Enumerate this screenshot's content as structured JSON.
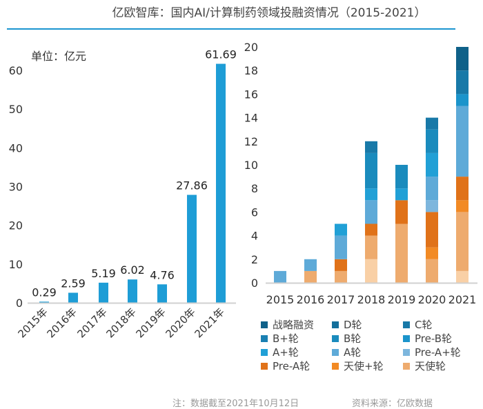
{
  "title": "亿欧智库：国内AI/计算制药领域投融资情况（2015-2021）",
  "footer": {
    "note": "注：数据截至2021年10月12日",
    "source": "资料来源：亿欧数据"
  },
  "chart_data": [
    {
      "type": "bar",
      "unit_label": "单位：亿元",
      "categories": [
        "2015年",
        "2016年",
        "2017年",
        "2018年",
        "2019年",
        "2020年",
        "2021年"
      ],
      "values": [
        0.29,
        2.59,
        5.19,
        6.02,
        4.76,
        27.86,
        61.69
      ],
      "data_labels": [
        "0.29",
        "2.59",
        "5.19",
        "6.02",
        "4.76",
        "27.86",
        "61.69"
      ],
      "ylim": [
        0,
        65
      ],
      "yticks": [
        0,
        10,
        20,
        30,
        40,
        50,
        60
      ],
      "color": "#1e9dd6",
      "grid": false
    },
    {
      "type": "bar",
      "stacked": true,
      "categories": [
        "2015",
        "2016",
        "2017",
        "2018",
        "2019",
        "2020",
        "2021"
      ],
      "ylim": [
        0,
        20
      ],
      "yticks": [
        0,
        2,
        4,
        6,
        8,
        10,
        12,
        14,
        16,
        18,
        20
      ],
      "grid": false,
      "legend_position": "bottom",
      "series": [
        {
          "name": "",
          "color": "#f9d0a6",
          "values": [
            0,
            0,
            0,
            2,
            0,
            0,
            1
          ]
        },
        {
          "name": "天使轮",
          "color": "#eeab6e",
          "values": [
            0,
            1,
            1,
            2,
            5,
            2,
            5
          ]
        },
        {
          "name": "天使+轮",
          "color": "#f28a24",
          "values": [
            0,
            0,
            0,
            0,
            0,
            1,
            1
          ]
        },
        {
          "name": "Pre-A轮",
          "color": "#e07219",
          "values": [
            0,
            0,
            1,
            1,
            2,
            3,
            2
          ]
        },
        {
          "name": "Pre-A+轮",
          "color": "#7db6dd",
          "values": [
            0,
            0,
            0,
            0,
            0,
            1,
            0
          ]
        },
        {
          "name": "A轮",
          "color": "#5eaad8",
          "values": [
            1,
            1,
            2,
            2,
            0,
            2,
            6
          ]
        },
        {
          "name": "A+轮",
          "color": "#21a0d6",
          "values": [
            0,
            0,
            1,
            1,
            1,
            2,
            0
          ]
        },
        {
          "name": "Pre-B轮",
          "color": "#1b94cb",
          "values": [
            0,
            0,
            0,
            0,
            0,
            0,
            1
          ]
        },
        {
          "name": "B轮",
          "color": "#1a8bbd",
          "values": [
            0,
            0,
            0,
            3,
            2,
            2,
            0
          ]
        },
        {
          "name": "B+轮",
          "color": "#1a80b2",
          "values": [
            0,
            0,
            0,
            0,
            0,
            0,
            0
          ]
        },
        {
          "name": "C轮",
          "color": "#1879a8",
          "values": [
            0,
            0,
            0,
            1,
            0,
            1,
            2
          ]
        },
        {
          "name": "D轮",
          "color": "#136f9b",
          "values": [
            0,
            0,
            0,
            0,
            0,
            0,
            0
          ]
        },
        {
          "name": "战略融资",
          "color": "#0f6189",
          "values": [
            0,
            0,
            0,
            0,
            0,
            0,
            2
          ]
        }
      ],
      "legend_order": [
        "战略融资",
        "D轮",
        "C轮",
        "B+轮",
        "B轮",
        "Pre-B轮",
        "A+轮",
        "A轮",
        "Pre-A+轮",
        "Pre-A轮",
        "天使+轮",
        "天使轮"
      ]
    }
  ]
}
